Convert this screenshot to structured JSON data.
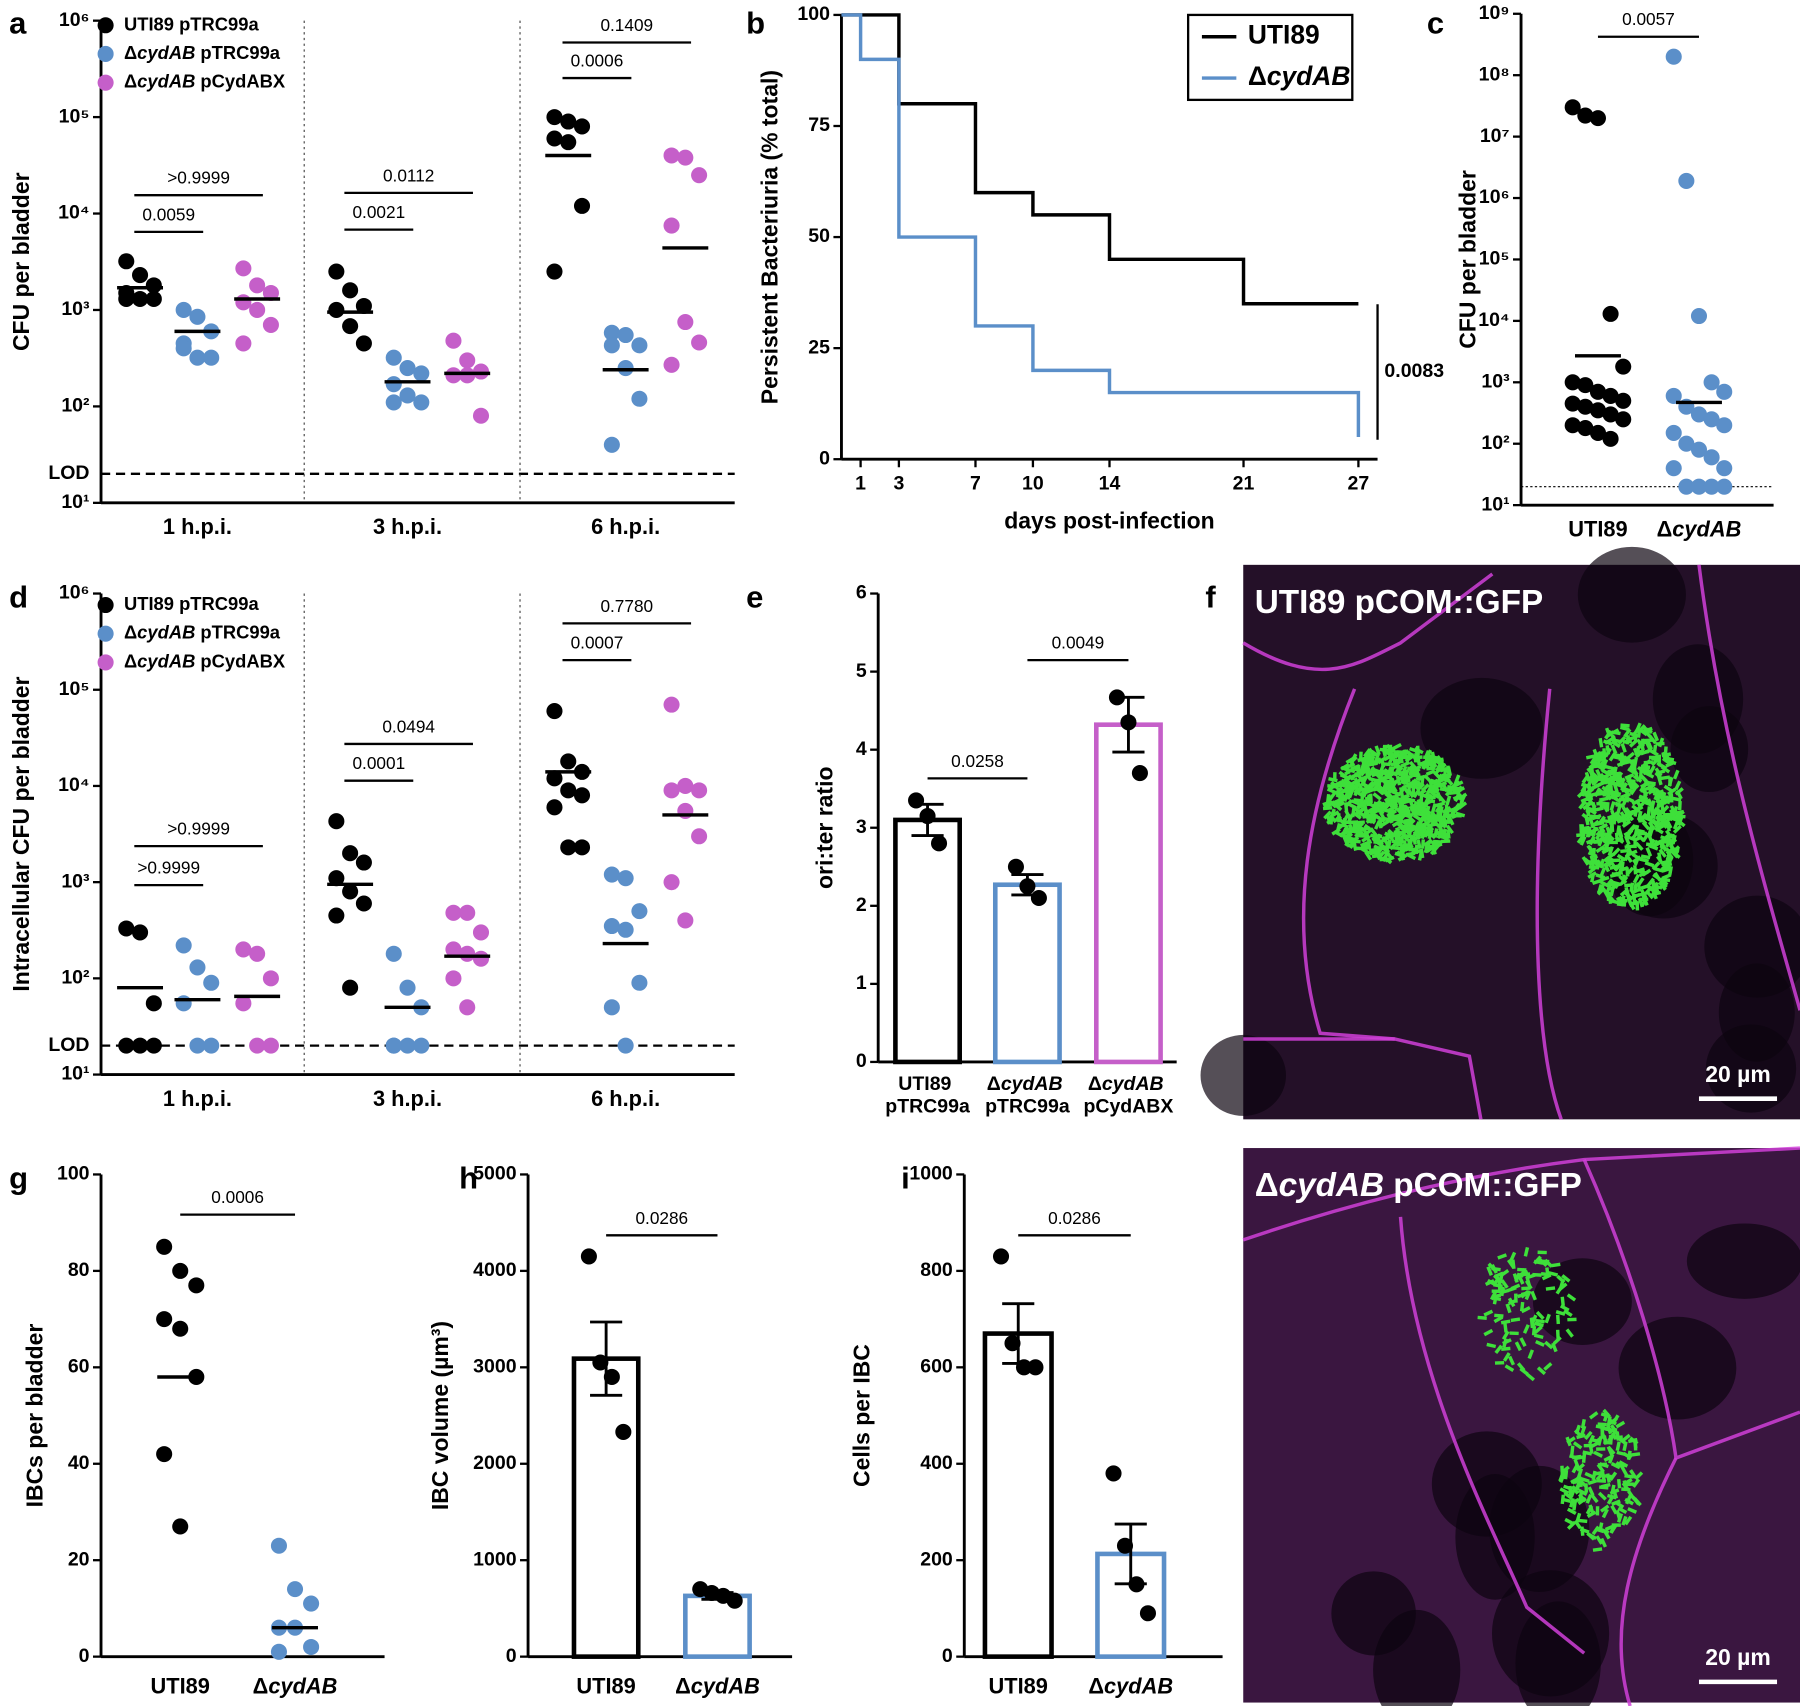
{
  "chart_data": [
    {
      "panel": "a",
      "type": "dot",
      "log": true,
      "ylabel": "CFU per bladder",
      "categories": [
        "1 h.p.i.",
        "3 h.p.i.",
        "6 h.p.i."
      ],
      "ylim": [
        10,
        1000000
      ],
      "yticks": [
        {
          "value": 10,
          "label": "10¹"
        },
        {
          "value": 100,
          "label": "10²"
        },
        {
          "value": 1000,
          "label": "10³"
        },
        {
          "value": 10000,
          "label": "10⁴"
        },
        {
          "value": 100000,
          "label": "10⁵"
        },
        {
          "value": 1000000,
          "label": "10⁶"
        }
      ],
      "lod": {
        "value": 20,
        "label": "LOD"
      },
      "series": [
        {
          "name": "UTI89 pTRC99a",
          "color": "#000000",
          "values": [
            [
              3200,
              2300,
              1800,
              1500,
              1300,
              1300,
              1300
            ],
            [
              2500,
              1600,
              1100,
              1000,
              680,
              450
            ],
            [
              100000,
              90000,
              80000,
              60000,
              55000,
              12000,
              2500
            ]
          ],
          "means": [
            1700,
            950,
            40000
          ]
        },
        {
          "name": "ΔcydAB pTRC99a",
          "color": "#5b8fc9",
          "values": [
            [
              1000,
              850,
              600,
              450,
              320,
              320,
              400
            ],
            [
              320,
              250,
              220,
              170,
              130,
              110,
              110
            ],
            [
              580,
              550,
              430,
              430,
              250,
              120,
              40
            ]
          ],
          "means": [
            600,
            180,
            240
          ]
        },
        {
          "name": "ΔcydAB pCydABX",
          "color": "#c55fc9",
          "values": [
            [
              2700,
              1800,
              1500,
              1200,
              1000,
              700,
              450
            ],
            [
              480,
              300,
              230,
              210,
              210,
              80
            ],
            [
              40000,
              38000,
              25000,
              7500,
              750,
              460,
              270
            ]
          ],
          "means": [
            1300,
            220,
            4400
          ]
        }
      ],
      "comparisons": [
        "0.0059",
        ">0.9999",
        "0.0021",
        "0.0112",
        "0.0006",
        "0.1409"
      ]
    },
    {
      "panel": "b",
      "type": "step",
      "ylabel": "Persistent Bacteriuria (% total)",
      "xlabel": "days post-infection",
      "xlim": [
        0,
        28
      ],
      "xticks": [
        1,
        3,
        7,
        10,
        14,
        21,
        27
      ],
      "ylim": [
        0,
        100
      ],
      "yticks": [
        0,
        25,
        50,
        75,
        100
      ],
      "series": [
        {
          "name": "UTI89",
          "color": "#000000",
          "x": [
            0,
            3,
            7,
            10,
            14,
            21,
            27
          ],
          "values": [
            100,
            80,
            60,
            55,
            45,
            35,
            35
          ]
        },
        {
          "name": "ΔcydAB",
          "color": "#5b8fc9",
          "x": [
            0,
            1,
            3,
            7,
            10,
            14,
            27
          ],
          "values": [
            100,
            90,
            50,
            30,
            20,
            15,
            5
          ]
        }
      ],
      "annotation": "0.0083"
    },
    {
      "panel": "c",
      "type": "dot",
      "log": true,
      "ylabel": "CFU per bladder",
      "categories": [
        "UTI89",
        "ΔcydAB"
      ],
      "colors": [
        "#000000",
        "#5b8fc9"
      ],
      "values": [
        [
          30000000,
          22000000,
          20000000,
          13000,
          1800,
          1000,
          900,
          700,
          600,
          500,
          450,
          400,
          350,
          300,
          250,
          200,
          180,
          150,
          120
        ],
        [
          200000000,
          1900000,
          12000,
          1000,
          700,
          600,
          400,
          300,
          250,
          200,
          150,
          100,
          80,
          60,
          40,
          40,
          20,
          20,
          20,
          20
        ]
      ],
      "means": [
        2700,
        470
      ],
      "ylim": [
        10,
        1000000000
      ],
      "yticks": [
        {
          "value": 10,
          "label": "10¹"
        },
        {
          "value": 100,
          "label": "10²"
        },
        {
          "value": 1000,
          "label": "10³"
        },
        {
          "value": 10000,
          "label": "10⁴"
        },
        {
          "value": 100000,
          "label": "10⁵"
        },
        {
          "value": 1000000,
          "label": "10⁶"
        },
        {
          "value": 10000000,
          "label": "10⁷"
        },
        {
          "value": 100000000,
          "label": "10⁸"
        },
        {
          "value": 1000000000,
          "label": "10⁹"
        }
      ],
      "lod": {
        "value": 20
      },
      "comparisons": [
        "0.0057"
      ]
    },
    {
      "panel": "d",
      "type": "dot",
      "log": true,
      "ylabel": "Intracellular CFU per bladder",
      "categories": [
        "1 h.p.i.",
        "3 h.p.i.",
        "6 h.p.i."
      ],
      "ylim": [
        10,
        1000000
      ],
      "yticks": [
        {
          "value": 10,
          "label": "10¹"
        },
        {
          "value": 100,
          "label": "10²"
        },
        {
          "value": 1000,
          "label": "10³"
        },
        {
          "value": 10000,
          "label": "10⁴"
        },
        {
          "value": 100000,
          "label": "10⁵"
        },
        {
          "value": 1000000,
          "label": "10⁶"
        }
      ],
      "lod": {
        "value": 20,
        "label": "LOD"
      },
      "series": [
        {
          "name": "UTI89 pTRC99a",
          "color": "#000000",
          "values": [
            [
              330,
              300,
              55,
              20,
              20,
              20
            ],
            [
              4300,
              2000,
              1600,
              1100,
              800,
              600,
              450,
              80
            ],
            [
              60000,
              18000,
              14000,
              12000,
              9000,
              8000,
              6000,
              2300,
              2300
            ]
          ],
          "means": [
            80,
            950,
            14000
          ]
        },
        {
          "name": "ΔcydAB pTRC99a",
          "color": "#5b8fc9",
          "values": [
            [
              220,
              130,
              90,
              55,
              20,
              20
            ],
            [
              180,
              80,
              50,
              20,
              20,
              20,
              20
            ],
            [
              1200,
              1100,
              500,
              350,
              320,
              90,
              50,
              20
            ]
          ],
          "means": [
            60,
            50,
            230
          ]
        },
        {
          "name": "ΔcydAB pCydABX",
          "color": "#c55fc9",
          "values": [
            [
              200,
              180,
              100,
              55,
              20,
              20
            ],
            [
              480,
              480,
              300,
              200,
              180,
              160,
              100,
              50
            ],
            [
              70000,
              10000,
              9000,
              9000,
              5500,
              3000,
              1000,
              400
            ]
          ],
          "means": [
            65,
            170,
            5000
          ]
        }
      ],
      "comparisons": [
        ">0.9999",
        ">0.9999",
        "0.0001",
        "0.0494",
        "0.0007",
        "0.7780"
      ]
    },
    {
      "panel": "e",
      "type": "bar",
      "ylabel": "ori:ter ratio",
      "categories": [
        "UTI89 pTRC99a",
        "ΔcydAB pTRC99a",
        "ΔcydAB pCydABX"
      ],
      "colors": [
        "#000000",
        "#5b8fc9",
        "#c55fc9"
      ],
      "values": [
        3.1,
        2.27,
        4.32
      ],
      "errors": [
        0.2,
        0.13,
        0.35
      ],
      "points": [
        [
          3.35,
          3.15,
          2.8
        ],
        [
          2.5,
          2.25,
          2.1
        ],
        [
          4.67,
          4.35,
          3.7
        ]
      ],
      "ylim": [
        0,
        6
      ],
      "yticks": [
        0,
        1,
        2,
        3,
        4,
        5,
        6
      ],
      "comparisons": [
        "0.0258",
        "0.0049"
      ]
    },
    {
      "panel": "g",
      "type": "dot",
      "ylabel": "IBCs per bladder",
      "categories": [
        "UTI89",
        "ΔcydAB"
      ],
      "colors": [
        "#000000",
        "#5b8fc9"
      ],
      "values": [
        [
          85,
          80,
          77,
          70,
          68,
          58,
          42,
          27
        ],
        [
          23,
          14,
          11,
          6,
          6,
          2,
          1
        ]
      ],
      "means": [
        58,
        6
      ],
      "ylim": [
        0,
        100
      ],
      "yticks": [
        0,
        20,
        40,
        60,
        80,
        100
      ],
      "comparisons": [
        "0.0006"
      ]
    },
    {
      "panel": "h",
      "type": "bar",
      "ylabel": "IBC volume (µm³)",
      "categories": [
        "UTI89",
        "ΔcydAB"
      ],
      "colors": [
        "#000000",
        "#5b8fc9"
      ],
      "values": [
        3090,
        630
      ],
      "errors": [
        380,
        35
      ],
      "points": [
        [
          4150,
          3050,
          2900,
          2330
        ],
        [
          700,
          660,
          630,
          580
        ]
      ],
      "ylim": [
        0,
        5000
      ],
      "yticks": [
        0,
        1000,
        2000,
        3000,
        4000,
        5000
      ],
      "comparisons": [
        "0.0286"
      ]
    },
    {
      "panel": "i",
      "type": "bar",
      "ylabel": "Cells per IBC",
      "categories": [
        "UTI89",
        "ΔcydAB"
      ],
      "colors": [
        "#000000",
        "#5b8fc9"
      ],
      "values": [
        670,
        213
      ],
      "errors": [
        62,
        62
      ],
      "points": [
        [
          830,
          650,
          600,
          600
        ],
        [
          380,
          230,
          150,
          90
        ]
      ],
      "ylim": [
        0,
        1000
      ],
      "yticks": [
        0,
        200,
        400,
        600,
        800,
        1000
      ],
      "comparisons": [
        "0.0286"
      ]
    }
  ],
  "images": {
    "panel": "f",
    "items": [
      {
        "label": "UTI89 pCOM::GFP",
        "scale_bar": "20 µm"
      },
      {
        "label": "ΔcydAB pCOM::GFP",
        "scale_bar": "20 µm"
      }
    ]
  }
}
